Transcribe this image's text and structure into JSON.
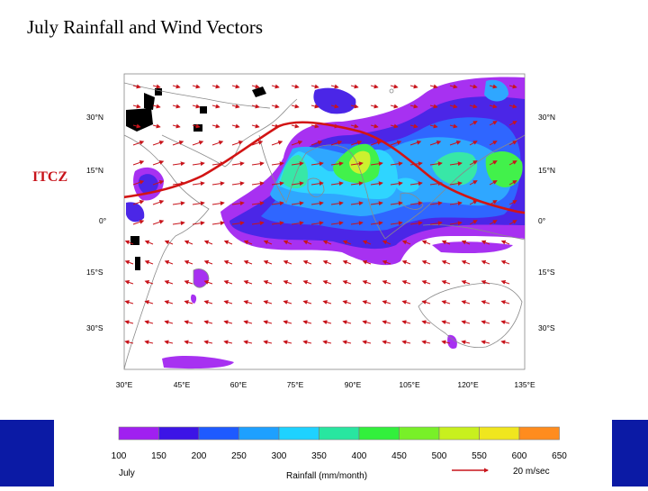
{
  "title": "July Rainfall and Wind Vectors",
  "itcz_label": "ITCZ",
  "map": {
    "lat_labels": [
      "30°N",
      "15°N",
      "0°",
      "15°S",
      "30°S"
    ],
    "lon_labels": [
      "30°E",
      "45°E",
      "60°E",
      "75°E",
      "90°E",
      "105°E",
      "120°E",
      "135°E"
    ]
  },
  "colorbar": {
    "ticks": [
      "100",
      "150",
      "200",
      "250",
      "300",
      "350",
      "400",
      "450",
      "500",
      "550",
      "600",
      "650"
    ],
    "colors": [
      "#a020f0",
      "#3c14e6",
      "#1e5aff",
      "#1ea0ff",
      "#1ed2ff",
      "#28e6a0",
      "#32f03c",
      "#78f028",
      "#c8f01e",
      "#f0e61e",
      "#ff8c1e"
    ],
    "month": "July",
    "title": "Rainfall (mm/month)",
    "vector_ref": "20 m/sec"
  },
  "colors": {
    "itcz_line": "#d21414",
    "wind_arrow": "#c8141b",
    "bottom_band": "#0b1aa5"
  }
}
